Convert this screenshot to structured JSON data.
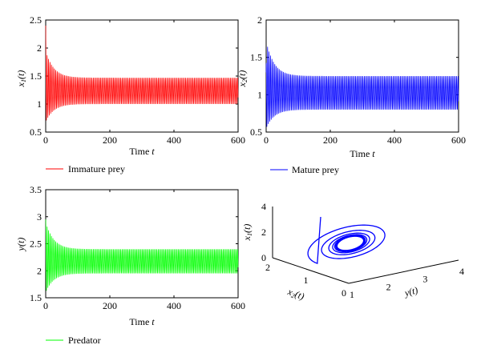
{
  "chart_data": [
    {
      "type": "line",
      "panel": "top-left",
      "xlabel": "Time t",
      "ylabel": "x1(t)",
      "xlim": [
        0,
        600
      ],
      "ylim": [
        0.5,
        2.5
      ],
      "xticks": [
        0,
        200,
        400,
        600
      ],
      "yticks": [
        0.5,
        1,
        1.5,
        2,
        2.5
      ],
      "series": [
        {
          "name": "Immature prey",
          "color": "#ff0000",
          "x0": 0,
          "y0": 2.4,
          "first_min": 0.68,
          "first_max": 1.95,
          "steady_min": 1.0,
          "steady_max": 1.47,
          "period": 4.5
        }
      ],
      "legend_label": "Immature prey"
    },
    {
      "type": "line",
      "panel": "top-right",
      "xlabel": "Time t",
      "ylabel": "x2(t)",
      "xlim": [
        0,
        600
      ],
      "ylim": [
        0.5,
        2.0
      ],
      "xticks": [
        0,
        200,
        400,
        600
      ],
      "yticks": [
        0.5,
        1,
        1.5,
        2
      ],
      "series": [
        {
          "name": "Mature prey",
          "color": "#0000ff",
          "x0": 0,
          "y0": 1.3,
          "first_min": 0.55,
          "first_max": 1.72,
          "steady_min": 0.8,
          "steady_max": 1.25,
          "period": 4.5
        }
      ],
      "legend_label": "Mature prey"
    },
    {
      "type": "line",
      "panel": "bottom-left",
      "xlabel": "Time t",
      "ylabel": "y(t)",
      "xlim": [
        0,
        600
      ],
      "ylim": [
        1.5,
        3.5
      ],
      "xticks": [
        0,
        200,
        400,
        600
      ],
      "yticks": [
        1.5,
        2,
        2.5,
        3,
        3.5
      ],
      "series": [
        {
          "name": "Predator",
          "color": "#00ff00",
          "x0": 0,
          "y0": 2.95,
          "first_min": 1.6,
          "first_max": 2.9,
          "steady_min": 1.95,
          "steady_max": 2.4,
          "period": 4.5
        }
      ],
      "legend_label": "Predator"
    },
    {
      "type": "line3d",
      "panel": "bottom-right",
      "xlabel": "y(t)",
      "ylabel": "x2(t)",
      "zlabel": "x1(t)",
      "xlim": [
        1,
        4
      ],
      "ylim": [
        0,
        2
      ],
      "zlim": [
        0,
        4
      ],
      "xticks": [
        1,
        2,
        3,
        4
      ],
      "yticks": [
        0,
        1,
        2
      ],
      "zticks": [
        0,
        2,
        4
      ],
      "series": [
        {
          "name": "trajectory",
          "color": "#0000ff"
        }
      ]
    }
  ],
  "legends": {
    "immature": "Immature prey",
    "mature": "Mature prey",
    "predator": "Predator"
  },
  "colors": {
    "immature": "#ff0000",
    "mature": "#0000ff",
    "predator": "#00ff00"
  }
}
